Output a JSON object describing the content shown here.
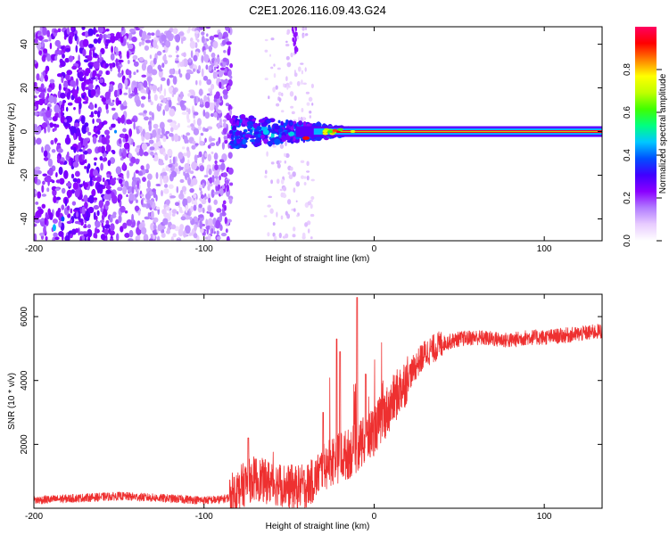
{
  "title": "C2E1.2026.116.09.43.G24",
  "chart_data": [
    {
      "type": "heatmap",
      "name": "spectrogram",
      "xlabel": "Height of straight line (km)",
      "ylabel": "Frequency (Hz)",
      "xlim": [
        -200,
        134
      ],
      "ylim": [
        -50,
        48
      ],
      "xticks": [
        -200,
        -100,
        0,
        100
      ],
      "yticks": [
        -40,
        -20,
        0,
        20,
        40
      ],
      "carrier_start_km": -25,
      "carrier_frequency_hz": 0,
      "noise_region_km": [
        -200,
        -84
      ],
      "transition_region_km": [
        -84,
        -25
      ]
    },
    {
      "type": "colorbar",
      "label": "Normalized spectral amplitude",
      "range": [
        0,
        1
      ],
      "ticks": [
        "0.0",
        "0.2",
        "0.4",
        "0.6",
        "0.8"
      ],
      "tick_values": [
        0.0,
        0.2,
        0.4,
        0.6,
        0.8
      ],
      "colormap": [
        "#ffffff",
        "#e8ccff",
        "#b27cff",
        "#8a00ff",
        "#4000ff",
        "#0050ff",
        "#00c8ff",
        "#00ff80",
        "#40ff00",
        "#c0ff00",
        "#ffff00",
        "#ff8000",
        "#ff0000",
        "#ff0060"
      ]
    },
    {
      "type": "line",
      "name": "snr",
      "xlabel": "Height of straight line (km)",
      "ylabel": "SNR (10 * v/v)",
      "xlim": [
        -200,
        134
      ],
      "ylim": [
        0,
        6700
      ],
      "xticks": [
        -200,
        -100,
        0,
        100
      ],
      "yticks": [
        2000,
        4000,
        6000
      ],
      "color": "#ee3030",
      "profile": {
        "x": [
          -200,
          -150,
          -100,
          -90,
          -85,
          -80,
          -75,
          -70,
          -65,
          -60,
          -55,
          -50,
          -45,
          -40,
          -35,
          -30,
          -25,
          -20,
          -15,
          -10,
          -5,
          0,
          5,
          10,
          15,
          20,
          25,
          30,
          40,
          50,
          60,
          70,
          80,
          90,
          100,
          110,
          120,
          134
        ],
        "y": [
          250,
          380,
          250,
          270,
          340,
          600,
          800,
          950,
          850,
          800,
          750,
          680,
          650,
          700,
          900,
          1300,
          1500,
          1600,
          1700,
          1900,
          2100,
          2450,
          2850,
          3250,
          3700,
          4100,
          4500,
          4850,
          5150,
          5300,
          5350,
          5300,
          5250,
          5350,
          5350,
          5400,
          5450,
          5550
        ]
      },
      "spikes": [
        {
          "x": -74,
          "y": 2200
        },
        {
          "x": -30,
          "y": 3000
        },
        {
          "x": -22,
          "y": 5300
        },
        {
          "x": -20,
          "y": 4900
        },
        {
          "x": -10,
          "y": 6600
        },
        {
          "x": -5,
          "y": 4200
        }
      ]
    }
  ]
}
